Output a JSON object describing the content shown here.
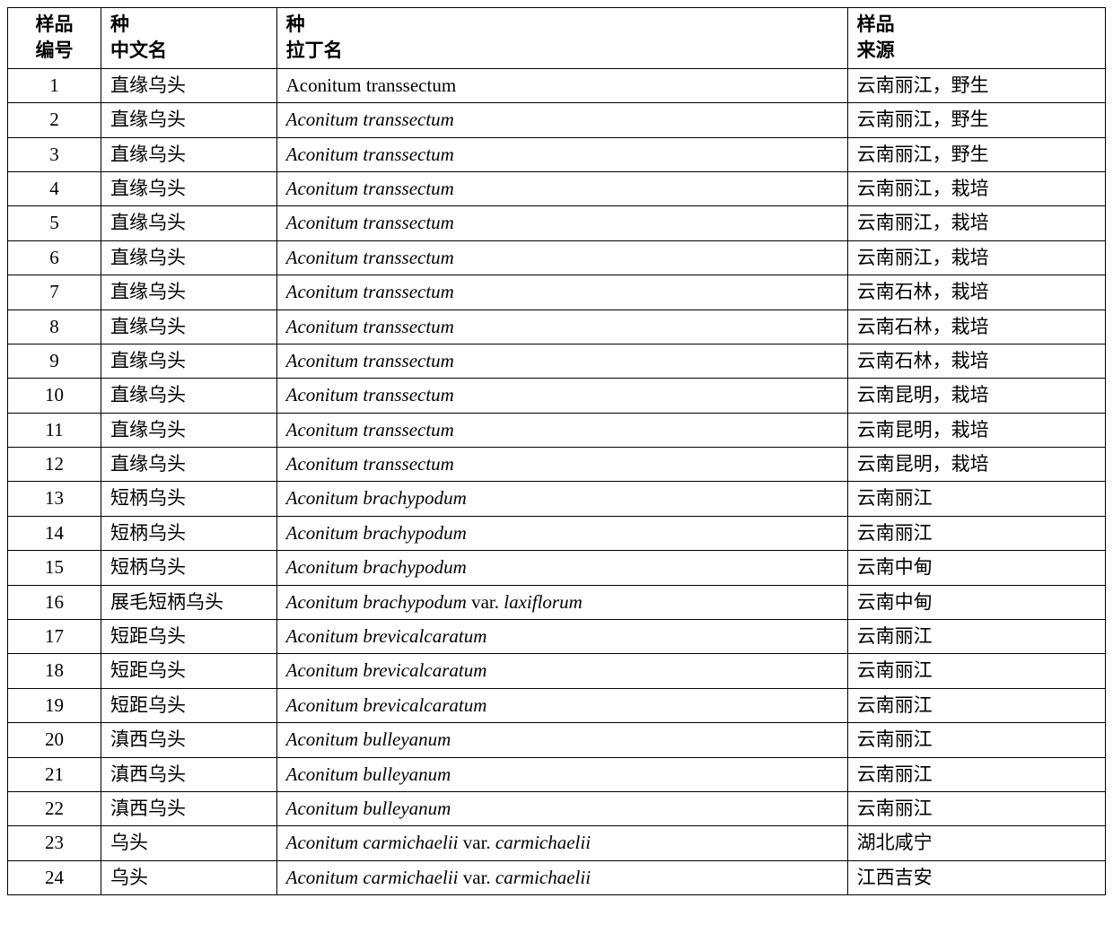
{
  "table": {
    "headers": {
      "id_line1": "样品",
      "id_line2": "编号",
      "cn_line1": "种",
      "cn_line2": "中文名",
      "latin_line1": "种",
      "latin_line2": "拉丁名",
      "source_line1": "样品",
      "source_line2": "来源"
    },
    "col_widths": {
      "id": "8.5%",
      "cn": "16%",
      "latin": "52%",
      "source": "23.5%"
    },
    "font_size": 21,
    "border_color": "#000000",
    "background_color": "#ffffff",
    "rows": [
      {
        "id": "1",
        "cn": "直缘乌头",
        "latin": "Aconitum transsectum",
        "latin_style": "roman",
        "source": "云南丽江，野生"
      },
      {
        "id": "2",
        "cn": "直缘乌头",
        "latin": "Aconitum transsectum",
        "latin_style": "italic",
        "source": "云南丽江，野生"
      },
      {
        "id": "3",
        "cn": "直缘乌头",
        "latin": "Aconitum transsectum",
        "latin_style": "italic",
        "source": "云南丽江，野生"
      },
      {
        "id": "4",
        "cn": "直缘乌头",
        "latin": "Aconitum transsectum",
        "latin_style": "italic",
        "source": "云南丽江，栽培"
      },
      {
        "id": "5",
        "cn": "直缘乌头",
        "latin": "Aconitum transsectum",
        "latin_style": "italic",
        "source": "云南丽江，栽培"
      },
      {
        "id": "6",
        "cn": "直缘乌头",
        "latin": "Aconitum transsectum",
        "latin_style": "italic",
        "source": "云南丽江，栽培"
      },
      {
        "id": "7",
        "cn": "直缘乌头",
        "latin": "Aconitum transsectum",
        "latin_style": "italic",
        "source": "云南石林，栽培"
      },
      {
        "id": "8",
        "cn": "直缘乌头",
        "latin": "Aconitum transsectum",
        "latin_style": "italic",
        "source": "云南石林，栽培"
      },
      {
        "id": "9",
        "cn": "直缘乌头",
        "latin": "Aconitum transsectum",
        "latin_style": "italic",
        "source": "云南石林，栽培"
      },
      {
        "id": "10",
        "cn": "直缘乌头",
        "latin": "Aconitum transsectum",
        "latin_style": "italic",
        "source": "云南昆明，栽培"
      },
      {
        "id": "11",
        "cn": "直缘乌头",
        "latin": "Aconitum transsectum",
        "latin_style": "italic",
        "source": "云南昆明，栽培"
      },
      {
        "id": "12",
        "cn": "直缘乌头",
        "latin": "Aconitum transsectum",
        "latin_style": "italic",
        "source": "云南昆明，栽培"
      },
      {
        "id": "13",
        "cn": "短柄乌头",
        "latin": "Aconitum brachypodum",
        "latin_style": "italic",
        "source": "云南丽江"
      },
      {
        "id": "14",
        "cn": "短柄乌头",
        "latin": "Aconitum brachypodum",
        "latin_style": "italic",
        "source": "云南丽江"
      },
      {
        "id": "15",
        "cn": "短柄乌头",
        "latin": "Aconitum brachypodum",
        "latin_style": "italic",
        "source": "云南中甸"
      },
      {
        "id": "16",
        "cn": "展毛短柄乌头",
        "latin_parts": [
          {
            "text": "Aconitum brachypodum ",
            "style": "italic"
          },
          {
            "text": "var. ",
            "style": "roman"
          },
          {
            "text": "laxiflorum",
            "style": "italic"
          }
        ],
        "latin_style": "mixed",
        "source": "云南中甸"
      },
      {
        "id": "17",
        "cn": "短距乌头",
        "latin": "Aconitum brevicalcaratum",
        "latin_style": "italic",
        "source": "云南丽江"
      },
      {
        "id": "18",
        "cn": "短距乌头",
        "latin": "Aconitum brevicalcaratum",
        "latin_style": "italic",
        "source": "云南丽江"
      },
      {
        "id": "19",
        "cn": "短距乌头",
        "latin": "Aconitum brevicalcaratum",
        "latin_style": "italic",
        "source": "云南丽江"
      },
      {
        "id": "20",
        "cn": "滇西乌头",
        "latin": "Aconitum bulleyanum",
        "latin_style": "italic",
        "source": "云南丽江"
      },
      {
        "id": "21",
        "cn": "滇西乌头",
        "latin": "Aconitum bulleyanum",
        "latin_style": "italic",
        "source": "云南丽江"
      },
      {
        "id": "22",
        "cn": "滇西乌头",
        "latin": "Aconitum bulleyanum",
        "latin_style": "italic",
        "source": "云南丽江"
      },
      {
        "id": "23",
        "cn": "乌头",
        "latin_parts": [
          {
            "text": "Aconitum carmichaelii ",
            "style": "italic"
          },
          {
            "text": "var. ",
            "style": "roman"
          },
          {
            "text": "carmichaelii",
            "style": "italic"
          }
        ],
        "latin_style": "mixed",
        "source": "湖北咸宁"
      },
      {
        "id": "24",
        "cn": "乌头",
        "latin_parts": [
          {
            "text": "Aconitum carmichaelii ",
            "style": "italic"
          },
          {
            "text": "var. ",
            "style": "roman"
          },
          {
            "text": "carmichaelii",
            "style": "italic"
          }
        ],
        "latin_style": "mixed",
        "source": "江西吉安"
      }
    ]
  }
}
